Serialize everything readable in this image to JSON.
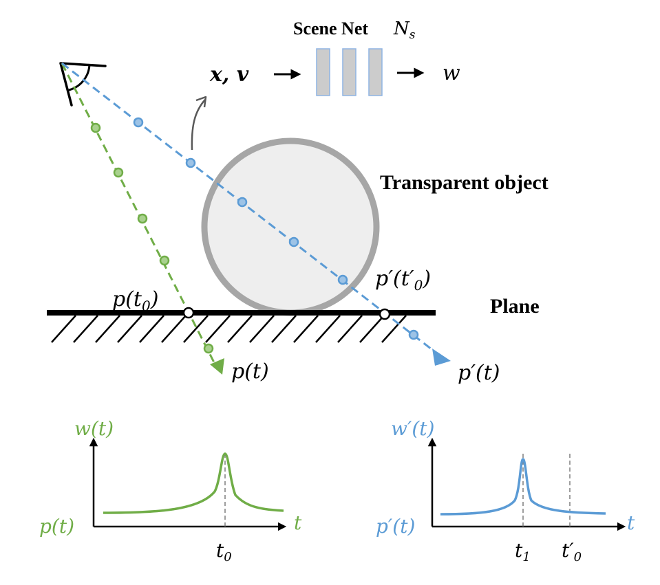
{
  "scene_net": {
    "title": "Scene Net",
    "symbol": "N",
    "symbol_sub": "s",
    "input_label": "x, v",
    "output_label": "w"
  },
  "object_label": "Transparent object",
  "plane_label": "Plane",
  "ray_labels": {
    "p_t0_main": "p(t",
    "p_t0_sub": "0",
    "p_t0_close": ")",
    "p_prime_t0_main": "p′(t′",
    "p_prime_t0_sub": "0",
    "p_prime_t0_close": ")",
    "p_t": "p(t)",
    "p_prime_t": "p′(t)"
  },
  "plot_left": {
    "ylabel": "w(t)",
    "xlabel": "t",
    "curve_label": "p(t)",
    "tick_main": "t",
    "tick_sub": "0"
  },
  "plot_right": {
    "ylabel": "w′(t)",
    "xlabel": "t",
    "curve_label": "p′(t)",
    "tick1_main": "t",
    "tick1_sub": "1",
    "tick2_main": "t′",
    "tick2_sub": "0"
  },
  "colors": {
    "green": "#70ad47",
    "blue": "#5b9bd5",
    "gray_edge": "#a6a6a6",
    "object_fill": "#eeeeee",
    "net_fill": "#cccccc",
    "black": "#000000"
  }
}
